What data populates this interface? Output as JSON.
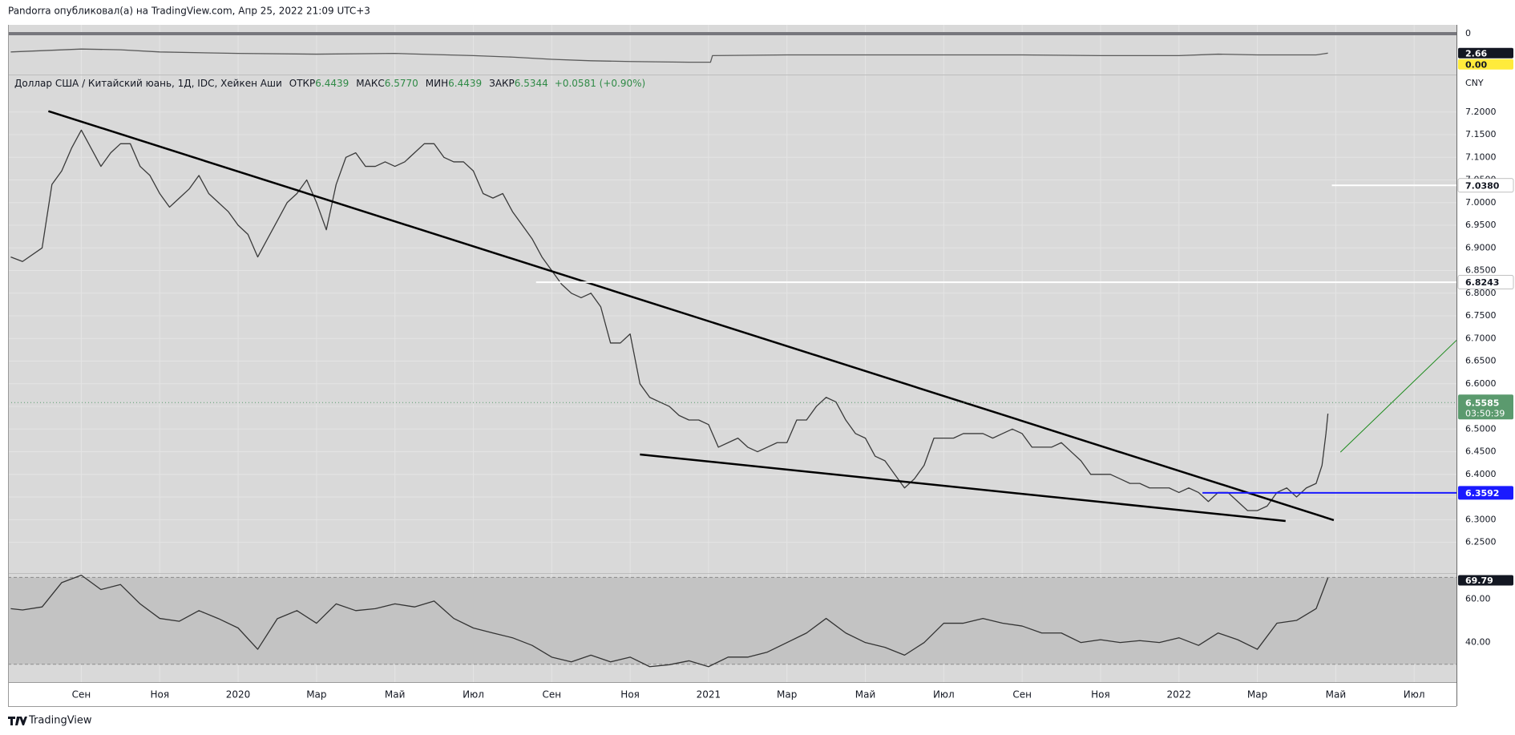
{
  "header": "Pandorra опубликовал(а) на TradingView.com, Апр 25, 2022 21:09 UTC+3",
  "footer": "TradingView",
  "chart_data": [
    {
      "type": "line",
      "ylim": [
        5.58,
        -1.2
      ],
      "yticks": [
        0
      ],
      "grid_color": "#77777d",
      "grid_width": 4,
      "series": [
        {
          "color": "#5a5a5a",
          "x": [
            -1.8,
            0,
            1,
            2,
            4,
            6,
            8,
            10,
            11,
            12,
            13,
            14,
            15.5,
            16.05,
            16.1,
            18,
            20,
            22,
            24,
            26,
            28,
            29,
            30,
            31.5,
            31.8
          ],
          "values": [
            2.5,
            2.1,
            2.2,
            2.5,
            2.7,
            2.8,
            2.7,
            3.0,
            3.2,
            3.5,
            3.7,
            3.8,
            3.9,
            3.9,
            3.0,
            2.9,
            2.9,
            2.9,
            2.9,
            3.0,
            3.0,
            2.8,
            2.9,
            2.9,
            2.66
          ]
        }
      ],
      "badges": [
        {
          "value": 2.66,
          "label": "2.66",
          "color": "#131722",
          "text_color": "#ffffff"
        },
        {
          "value": 0,
          "label": "0.00",
          "color": "#ffeb3b",
          "text_color": "#131722"
        }
      ]
    },
    {
      "type": "line",
      "legend": {
        "symbol": "Доллар США / Китайский юань, 1Д, IDC, Хейкен Аши",
        "fields": [
          {
            "label": "ОТКР",
            "value": "6.4439"
          },
          {
            "label": "МАКС",
            "value": "6.5770"
          },
          {
            "label": "МИН",
            "value": "6.4439"
          },
          {
            "label": "ЗАКР",
            "value": "6.5344"
          }
        ],
        "change": "+0.0581 (+0.90%)"
      },
      "currency": "CNY",
      "xlim": [
        -1.87,
        35.08
      ],
      "xticks": [
        {
          "value": 0,
          "label": "Сен"
        },
        {
          "value": 2,
          "label": "Ноя"
        },
        {
          "value": 4,
          "label": "2020"
        },
        {
          "value": 6,
          "label": "Мар"
        },
        {
          "value": 8,
          "label": "Май"
        },
        {
          "value": 10,
          "label": "Июл"
        },
        {
          "value": 12,
          "label": "Сен"
        },
        {
          "value": 14,
          "label": "Ноя"
        },
        {
          "value": 16,
          "label": "2021"
        },
        {
          "value": 18,
          "label": "Мар"
        },
        {
          "value": 20,
          "label": "Май"
        },
        {
          "value": 22,
          "label": "Июл"
        },
        {
          "value": 24,
          "label": "Сен"
        },
        {
          "value": 26,
          "label": "Ноя"
        },
        {
          "value": 28,
          "label": "2022"
        },
        {
          "value": 30,
          "label": "Мар"
        },
        {
          "value": 32,
          "label": "Май"
        },
        {
          "value": 34,
          "label": "Июл"
        }
      ],
      "ylim": [
        6.182,
        7.281
      ],
      "yticks": [
        {
          "value": 6.25,
          "label": "6.2500"
        },
        {
          "value": 6.3,
          "label": "6.3000"
        },
        {
          "value": 6.35,
          "label": "6.3500"
        },
        {
          "value": 6.4,
          "label": "6.4000"
        },
        {
          "value": 6.45,
          "label": "6.4500"
        },
        {
          "value": 6.5,
          "label": "6.5000"
        },
        {
          "value": 6.55,
          "label": "6.5500"
        },
        {
          "value": 6.6,
          "label": "6.6000"
        },
        {
          "value": 6.65,
          "label": "6.6500"
        },
        {
          "value": 6.7,
          "label": "6.7000"
        },
        {
          "value": 6.75,
          "label": "6.7500"
        },
        {
          "value": 6.8,
          "label": "6.8000"
        },
        {
          "value": 6.85,
          "label": "6.8500"
        },
        {
          "value": 6.9,
          "label": "6.9000"
        },
        {
          "value": 6.95,
          "label": "6.9500"
        },
        {
          "value": 7,
          "label": "7.0000"
        },
        {
          "value": 7.05,
          "label": "7.0500"
        },
        {
          "value": 7.1,
          "label": "7.1000"
        },
        {
          "value": 7.15,
          "label": "7.1500"
        },
        {
          "value": 7.2,
          "label": "7.2000"
        }
      ],
      "grid_color": "#e4e4e4",
      "grid_width": 1,
      "series": [
        {
          "color": "#3a3a3a",
          "x": [
            -1.8,
            -1.5,
            -1,
            -0.75,
            -0.5,
            -0.25,
            0,
            0.25,
            0.5,
            0.75,
            1,
            1.25,
            1.5,
            1.75,
            2,
            2.25,
            2.5,
            2.75,
            3,
            3.25,
            3.5,
            3.75,
            4,
            4.25,
            4.5,
            4.75,
            5,
            5.25,
            5.5,
            5.75,
            6,
            6.25,
            6.5,
            6.75,
            7,
            7.25,
            7.5,
            7.75,
            8,
            8.25,
            8.5,
            8.75,
            9,
            9.25,
            9.5,
            9.75,
            10,
            10.25,
            10.5,
            10.75,
            11,
            11.25,
            11.5,
            11.75,
            12,
            12.25,
            12.5,
            12.75,
            13,
            13.25,
            13.5,
            13.75,
            14,
            14.25,
            14.5,
            14.75,
            15,
            15.25,
            15.5,
            15.75,
            16,
            16.25,
            16.5,
            16.75,
            17,
            17.25,
            17.5,
            17.75,
            18,
            18.25,
            18.5,
            18.75,
            19,
            19.25,
            19.5,
            19.75,
            20,
            20.25,
            20.5,
            20.75,
            21,
            21.25,
            21.5,
            21.75,
            22,
            22.25,
            22.5,
            22.75,
            23,
            23.25,
            23.5,
            23.75,
            24,
            24.25,
            24.5,
            24.75,
            25,
            25.25,
            25.5,
            25.75,
            26,
            26.25,
            26.5,
            26.75,
            27,
            27.25,
            27.5,
            27.75,
            28,
            28.25,
            28.5,
            28.75,
            29,
            29.25,
            29.5,
            29.75,
            30,
            30.25,
            30.5,
            30.75,
            31,
            31.25,
            31.5,
            31.65,
            31.75,
            31.8
          ],
          "values": [
            6.88,
            6.87,
            6.9,
            7.04,
            7.07,
            7.12,
            7.16,
            7.12,
            7.08,
            7.11,
            7.13,
            7.13,
            7.08,
            7.06,
            7.02,
            6.99,
            7.01,
            7.03,
            7.06,
            7.02,
            7.0,
            6.98,
            6.95,
            6.93,
            6.88,
            6.92,
            6.96,
            7.0,
            7.02,
            7.05,
            7.0,
            6.94,
            7.04,
            7.1,
            7.11,
            7.08,
            7.08,
            7.09,
            7.08,
            7.09,
            7.11,
            7.13,
            7.13,
            7.1,
            7.09,
            7.09,
            7.07,
            7.02,
            7.01,
            7.02,
            6.98,
            6.95,
            6.92,
            6.88,
            6.85,
            6.82,
            6.8,
            6.79,
            6.8,
            6.77,
            6.69,
            6.69,
            6.71,
            6.6,
            6.57,
            6.56,
            6.55,
            6.53,
            6.52,
            6.52,
            6.51,
            6.46,
            6.47,
            6.48,
            6.46,
            6.45,
            6.46,
            6.47,
            6.47,
            6.52,
            6.52,
            6.55,
            6.57,
            6.56,
            6.52,
            6.49,
            6.48,
            6.44,
            6.43,
            6.4,
            6.37,
            6.39,
            6.42,
            6.48,
            6.48,
            6.48,
            6.49,
            6.49,
            6.49,
            6.48,
            6.49,
            6.5,
            6.49,
            6.46,
            6.46,
            6.46,
            6.47,
            6.45,
            6.43,
            6.4,
            6.4,
            6.4,
            6.39,
            6.38,
            6.38,
            6.37,
            6.37,
            6.37,
            6.36,
            6.37,
            6.36,
            6.34,
            6.36,
            6.36,
            6.34,
            6.32,
            6.32,
            6.33,
            6.36,
            6.37,
            6.35,
            6.37,
            6.38,
            6.42,
            6.49,
            6.534
          ]
        }
      ],
      "trendlines": [
        {
          "color": "#000000",
          "width": 2.5,
          "x": [
            -0.84,
            31.95
          ],
          "values": [
            7.202,
            6.299
          ]
        },
        {
          "color": "#000000",
          "width": 2.5,
          "x": [
            14.25,
            30.72
          ],
          "values": [
            6.444,
            6.297
          ]
        },
        {
          "color": "#1b8a1b",
          "width": 1,
          "x": [
            32.12,
            35.08
          ],
          "values": [
            6.449,
            6.696
          ]
        }
      ],
      "levels": [
        {
          "value": 7.038,
          "label": "7.0380",
          "color": "#ffffff",
          "text_color": "#131722",
          "x0": 31.9
        },
        {
          "value": 6.8243,
          "label": "6.8243",
          "color": "#ffffff",
          "text_color": "#131722",
          "x0": 11.6
        },
        {
          "value": 6.3592,
          "label": "6.3592",
          "color": "#1a1aff",
          "text_color": "#ffffff",
          "x0": 28.6
        }
      ],
      "current": {
        "value": 6.5585,
        "label": "6.5585",
        "countdown": "03:50:39",
        "color": "#5b9a6e"
      }
    },
    {
      "type": "line",
      "ylim": [
        21.8,
        71.6
      ],
      "yticks": [
        {
          "value": 40,
          "label": "40.00"
        },
        {
          "value": 60,
          "label": "60.00"
        }
      ],
      "grid_color": "#e4e4e4",
      "grid_width": 1,
      "band": {
        "range": [
          30,
          70
        ],
        "color": "#c3c3c3"
      },
      "series": [
        {
          "color": "#333333",
          "x": [
            -1.8,
            -1.5,
            -1,
            -0.5,
            0,
            0.5,
            1,
            1.5,
            2,
            2.5,
            3,
            3.5,
            4,
            4.5,
            5,
            5.5,
            6,
            6.5,
            7,
            7.5,
            8,
            8.5,
            9,
            9.5,
            10,
            10.5,
            11,
            11.5,
            12,
            12.5,
            13,
            13.5,
            14,
            14.5,
            15,
            15.5,
            16,
            16.5,
            17,
            17.5,
            18,
            18.5,
            19,
            19.5,
            20,
            20.5,
            21,
            21.5,
            22,
            22.5,
            23,
            23.5,
            24,
            24.5,
            25,
            25.5,
            26,
            26.5,
            27,
            27.5,
            28,
            28.5,
            29,
            29.5,
            30,
            30.5,
            31,
            31.5,
            31.8
          ],
          "values": [
            55.6,
            55,
            56.4,
            67.6,
            71,
            64.4,
            66.7,
            57.8,
            51.1,
            49.8,
            54.7,
            51,
            46.7,
            36.9,
            51,
            54.7,
            48.9,
            57.8,
            54.7,
            55.6,
            57.8,
            56.4,
            59.1,
            51.1,
            46.7,
            44.4,
            42.2,
            38.7,
            33.3,
            31.1,
            34.2,
            31.1,
            33.3,
            28.9,
            29.8,
            31.6,
            28.9,
            33.3,
            33.3,
            35.6,
            40,
            44.4,
            51.1,
            44.4,
            40,
            37.8,
            34.2,
            40,
            48.9,
            48.9,
            51.1,
            48.9,
            47.6,
            44.4,
            44.4,
            40,
            41.3,
            40,
            40.9,
            40,
            42.2,
            38.7,
            44.4,
            41.3,
            36.9,
            48.9,
            50.2,
            55.6,
            69.79
          ]
        }
      ],
      "badges": [
        {
          "value": 69.79,
          "label": "69.79",
          "color": "#131722",
          "text_color": "#ffffff"
        }
      ]
    }
  ]
}
